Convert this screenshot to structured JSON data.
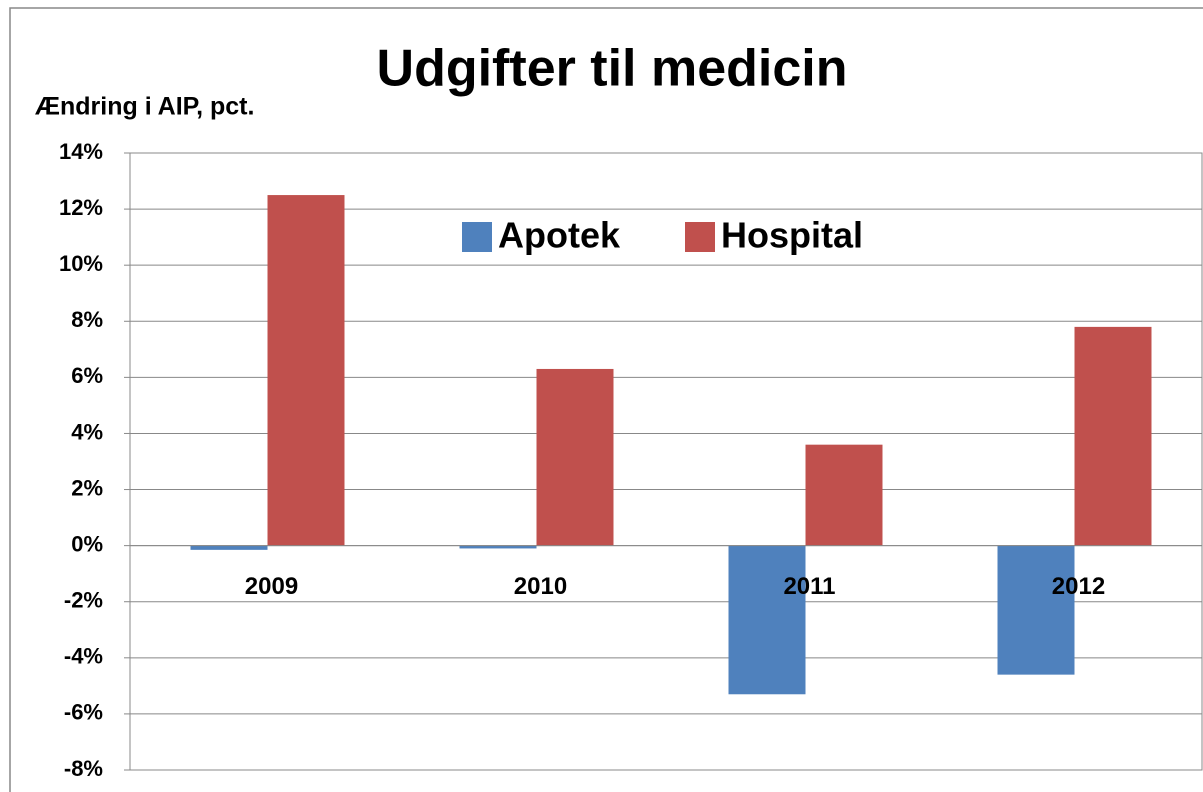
{
  "chart_data": {
    "type": "bar",
    "title": "Udgifter til medicin",
    "y_label": "Ændring i AIP, pct.",
    "categories": [
      "2009",
      "2010",
      "2011",
      "2012"
    ],
    "series": [
      {
        "name": "Apotek",
        "color": "#4f81bd",
        "values": [
          -0.15,
          -0.1,
          -5.3,
          -4.6
        ]
      },
      {
        "name": "Hospital",
        "color": "#c0504d",
        "values": [
          12.5,
          6.3,
          3.6,
          7.8
        ]
      }
    ],
    "ylim": [
      -8,
      14
    ],
    "yticks": [
      {
        "value": -8,
        "label": "-8%"
      },
      {
        "value": -6,
        "label": "-6%"
      },
      {
        "value": -4,
        "label": "-4%"
      },
      {
        "value": -2,
        "label": "-2%"
      },
      {
        "value": 0,
        "label": "0%"
      },
      {
        "value": 2,
        "label": "2%"
      },
      {
        "value": 4,
        "label": "4%"
      },
      {
        "value": 6,
        "label": "6%"
      },
      {
        "value": 8,
        "label": "8%"
      },
      {
        "value": 10,
        "label": "10%"
      },
      {
        "value": 12,
        "label": "12%"
      },
      {
        "value": 14,
        "label": "14%"
      }
    ],
    "grid": true,
    "legend_position": "top"
  }
}
